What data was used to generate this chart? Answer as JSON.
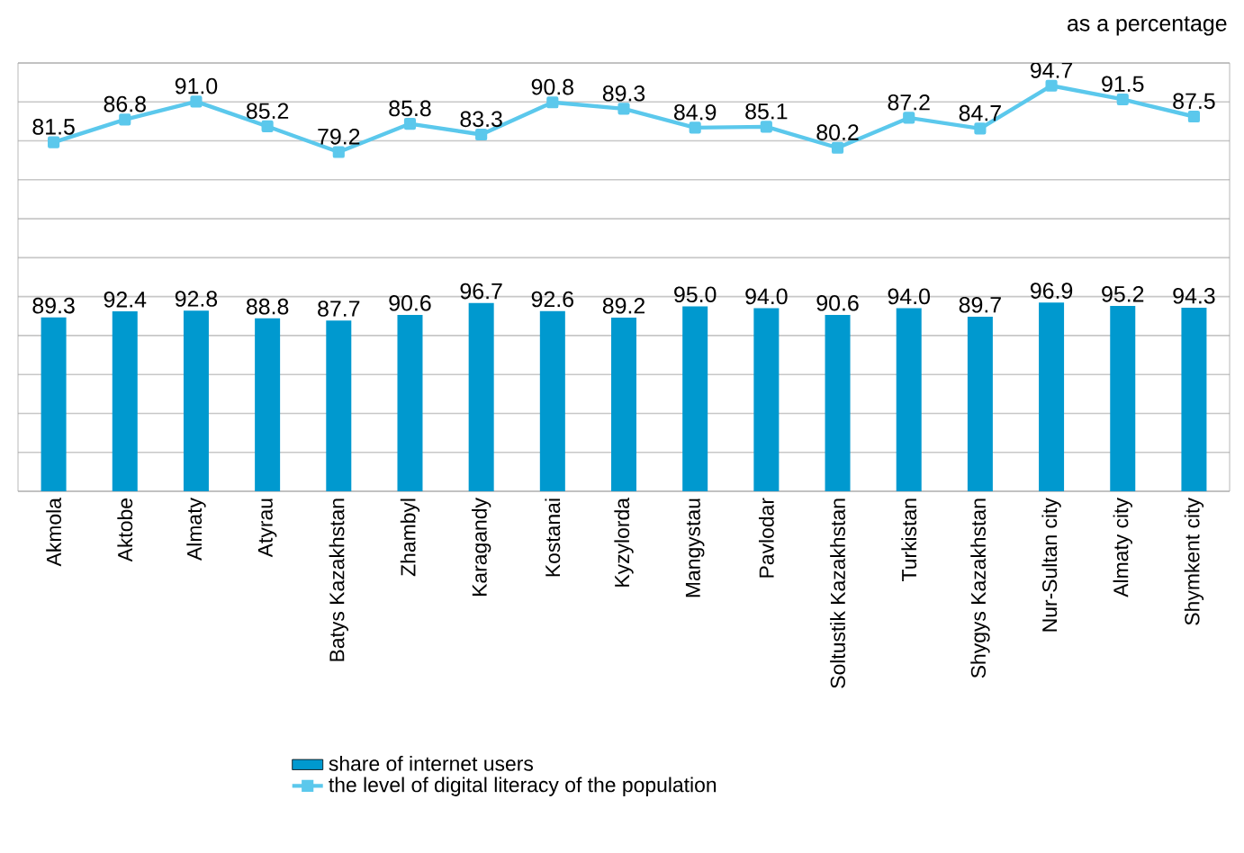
{
  "chart_data": {
    "type": "bar",
    "categories": [
      "Akmola",
      "Aktobe",
      "Almaty",
      "Atyrau",
      "Batys Kazakhstan",
      "Zhambyl",
      "Karagandy",
      "Kostanai",
      "Kyzylorda",
      "Mangystau",
      "Pavlodar",
      "Soltustik Kazakhstan",
      "Turkistan",
      "Shygys Kazakhstan",
      "Nur-Sultan city",
      "Almaty city",
      "Shymkent city"
    ],
    "series": [
      {
        "name": "share of internet users",
        "color": "#0099cf",
        "values": [
          89.3,
          92.4,
          92.8,
          88.8,
          87.7,
          90.6,
          96.7,
          92.6,
          89.2,
          95.0,
          94.0,
          90.6,
          94.0,
          89.7,
          96.9,
          95.2,
          94.3
        ],
        "value_labels": [
          "89.3",
          "92.4",
          "92.8",
          "88.8",
          "87.7",
          "90.6",
          "96.7",
          "92.6",
          "89.2",
          "95.0",
          "94.0",
          "90.6",
          "94.0",
          "89.7",
          "96.9",
          "95.2",
          "94.3"
        ]
      },
      {
        "name": "the level of digital literacy of the population",
        "type": "line",
        "axis": "y2",
        "color": "#5bc8ec",
        "marker": "square",
        "values": [
          81.5,
          86.8,
          91.0,
          85.2,
          79.2,
          85.8,
          83.3,
          90.8,
          89.3,
          84.9,
          85.1,
          80.2,
          87.2,
          84.7,
          94.7,
          91.5,
          87.5
        ],
        "value_labels": [
          "81.5",
          "86.8",
          "91.0",
          "85.2",
          "79.2",
          "85.8",
          "83.3",
          "90.8",
          "89.3",
          "84.9",
          "85.1",
          "80.2",
          "87.2",
          "84.7",
          "94.7",
          "91.5",
          "87.5"
        ]
      }
    ],
    "ylim": [
      0,
      220
    ],
    "yticks": [
      {
        "value": 0,
        "label": null
      },
      {
        "value": 20,
        "label": null
      },
      {
        "value": 40,
        "label": null
      },
      {
        "value": 60,
        "label": null
      },
      {
        "value": 80,
        "label": null
      },
      {
        "value": 100,
        "label": null
      },
      {
        "value": 120,
        "label": null
      },
      {
        "value": 140,
        "label": null
      },
      {
        "value": 160,
        "label": null
      },
      {
        "value": 180,
        "label": null
      },
      {
        "value": 200,
        "label": null
      },
      {
        "value": 220,
        "label": null
      }
    ],
    "y2lim": [
      0,
      100
    ],
    "grid": "y",
    "legend": "bottom",
    "tick_labels": "x",
    "annotations": [
      "as a percentage"
    ]
  }
}
